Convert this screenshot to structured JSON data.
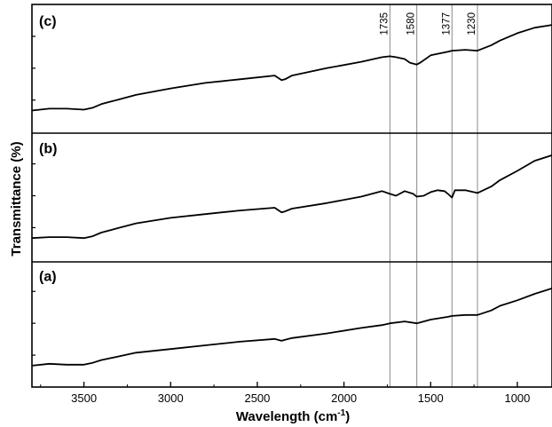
{
  "chart_data": {
    "type": "line",
    "xlabel": "Wavelength (cm",
    "xlabel_sup": "-1",
    "xlabel_tail": ")",
    "ylabel": "Transmittance (%)",
    "xlim": [
      3800,
      800
    ],
    "x_axis_reversed": true,
    "x_ticks": [
      3500,
      3000,
      2500,
      2000,
      1500,
      1000
    ],
    "x_tick_labels": [
      "3500",
      "3000",
      "2500",
      "2000",
      "1500",
      "1000"
    ],
    "grid": false,
    "reference_lines": [
      {
        "x": 1735,
        "label": "1735"
      },
      {
        "x": 1580,
        "label": "1580"
      },
      {
        "x": 1377,
        "label": "1377"
      },
      {
        "x": 1230,
        "label": "1230"
      }
    ],
    "panels": [
      {
        "label": "(c)",
        "series": [
          {
            "x": [
              3800,
              3700,
              3600,
              3500,
              3450,
              3400,
              3300,
              3200,
              3000,
              2900,
              2800,
              2600,
              2400,
              2360,
              2340,
              2300,
              2100,
              1900,
              1780,
              1735,
              1700,
              1650,
              1620,
              1580,
              1560,
              1500,
              1450,
              1400,
              1377,
              1300,
              1230,
              1150,
              1100,
              1000,
              900,
              800
            ],
            "y": [
              0.04,
              0.06,
              0.06,
              0.05,
              0.07,
              0.11,
              0.16,
              0.21,
              0.28,
              0.31,
              0.34,
              0.38,
              0.42,
              0.37,
              0.38,
              0.42,
              0.5,
              0.57,
              0.62,
              0.63,
              0.62,
              0.6,
              0.56,
              0.54,
              0.56,
              0.64,
              0.66,
              0.68,
              0.69,
              0.7,
              0.69,
              0.75,
              0.8,
              0.88,
              0.94,
              0.97
            ]
          }
        ]
      },
      {
        "label": "(b)",
        "series": [
          {
            "x": [
              3800,
              3700,
              3600,
              3500,
              3450,
              3400,
              3300,
              3200,
              3000,
              2800,
              2600,
              2400,
              2360,
              2340,
              2300,
              2100,
              1900,
              1780,
              1735,
              1700,
              1650,
              1600,
              1580,
              1540,
              1500,
              1460,
              1420,
              1400,
              1377,
              1360,
              1300,
              1230,
              1150,
              1100,
              1000,
              900,
              800
            ],
            "y": [
              0.04,
              0.05,
              0.05,
              0.04,
              0.06,
              0.1,
              0.15,
              0.2,
              0.26,
              0.3,
              0.34,
              0.37,
              0.32,
              0.33,
              0.36,
              0.42,
              0.49,
              0.55,
              0.52,
              0.5,
              0.55,
              0.52,
              0.49,
              0.5,
              0.54,
              0.56,
              0.55,
              0.52,
              0.48,
              0.56,
              0.56,
              0.53,
              0.6,
              0.67,
              0.77,
              0.88,
              0.94
            ]
          }
        ]
      },
      {
        "label": "(a)",
        "series": [
          {
            "x": [
              3800,
              3700,
              3600,
              3500,
              3450,
              3400,
              3300,
              3200,
              3000,
              2800,
              2600,
              2400,
              2360,
              2340,
              2300,
              2100,
              1900,
              1780,
              1735,
              1650,
              1580,
              1500,
              1400,
              1377,
              1300,
              1230,
              1150,
              1100,
              1000,
              900,
              800
            ],
            "y": [
              0.04,
              0.06,
              0.05,
              0.05,
              0.07,
              0.1,
              0.14,
              0.18,
              0.22,
              0.26,
              0.3,
              0.33,
              0.31,
              0.32,
              0.34,
              0.39,
              0.45,
              0.48,
              0.5,
              0.52,
              0.5,
              0.54,
              0.57,
              0.58,
              0.59,
              0.59,
              0.64,
              0.69,
              0.75,
              0.82,
              0.88
            ]
          }
        ]
      }
    ]
  }
}
